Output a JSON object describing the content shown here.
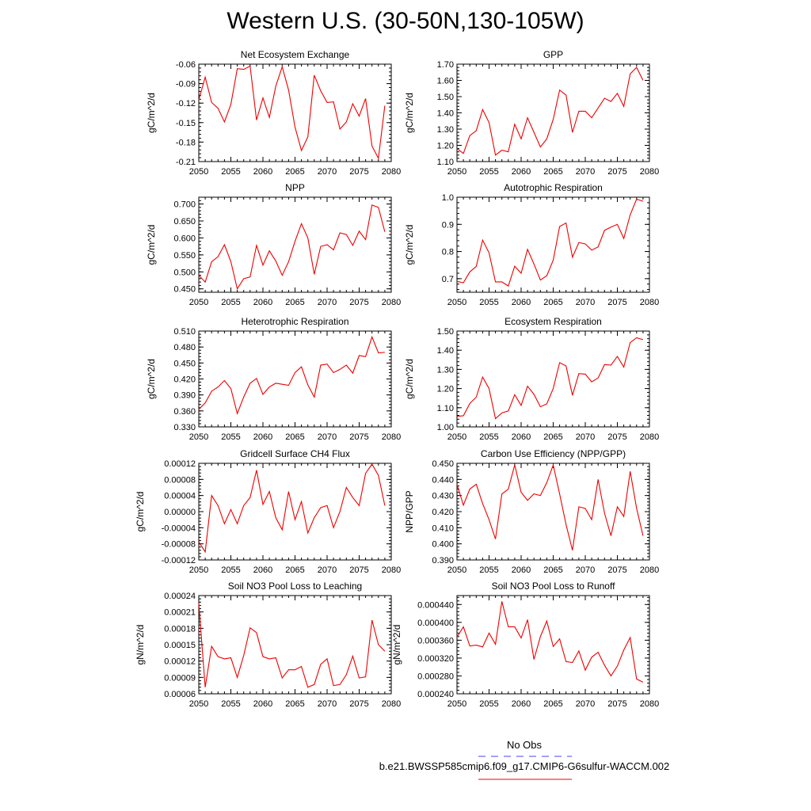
{
  "figure": {
    "title": "Western U.S. (30-50N,130-105W)"
  },
  "legend": {
    "items": [
      {
        "label": "No Obs",
        "color": "#4444ee",
        "style": "dashed"
      },
      {
        "label": "b.e21.BWSSP585cmip6.f09_g17.CMIP6-G6sulfur-WACCM.002",
        "color": "#ee0000",
        "style": "solid"
      }
    ]
  },
  "chart_data": [
    {
      "type": "line",
      "title": "Net Ecosystem Exchange",
      "ylabel": "gC/m^2/d",
      "xlim": [
        2050,
        2080
      ],
      "ylim": [
        -0.21,
        -0.06
      ],
      "xticks": [
        2050,
        2055,
        2060,
        2065,
        2070,
        2075,
        2080
      ],
      "xtick_labels": [
        "2050",
        "2055",
        "2060",
        "2065",
        "2070",
        "2075",
        "2080"
      ],
      "yticks": [
        -0.21,
        -0.18,
        -0.15,
        -0.12,
        -0.09,
        -0.06
      ],
      "ytick_labels": [
        "-0.21",
        "-0.18",
        "-0.15",
        "-0.12",
        "-0.09",
        "-0.06"
      ],
      "x": [
        2050,
        2051,
        2052,
        2053,
        2054,
        2055,
        2056,
        2057,
        2058,
        2059,
        2060,
        2061,
        2062,
        2063,
        2064,
        2065,
        2066,
        2067,
        2068,
        2069,
        2070,
        2071,
        2072,
        2073,
        2074,
        2075,
        2076,
        2077,
        2078,
        2079
      ],
      "series": [
        {
          "color": "#ee0000",
          "values": [
            -0.115,
            -0.08,
            -0.119,
            -0.128,
            -0.149,
            -0.122,
            -0.067,
            -0.068,
            -0.063,
            -0.146,
            -0.112,
            -0.142,
            -0.094,
            -0.064,
            -0.1,
            -0.157,
            -0.193,
            -0.172,
            -0.077,
            -0.101,
            -0.119,
            -0.118,
            -0.16,
            -0.149,
            -0.121,
            -0.14,
            -0.113,
            -0.186,
            -0.205,
            -0.124
          ]
        }
      ]
    },
    {
      "type": "line",
      "title": "GPP",
      "ylabel": "gC/m^2/d",
      "xlim": [
        2050,
        2080
      ],
      "ylim": [
        1.1,
        1.7
      ],
      "xticks": [
        2050,
        2055,
        2060,
        2065,
        2070,
        2075,
        2080
      ],
      "xtick_labels": [
        "2050",
        "2055",
        "2060",
        "2065",
        "2070",
        "2075",
        "2080"
      ],
      "yticks": [
        1.1,
        1.2,
        1.3,
        1.4,
        1.5,
        1.6,
        1.7
      ],
      "ytick_labels": [
        "1.10",
        "1.20",
        "1.30",
        "1.40",
        "1.50",
        "1.60",
        "1.70"
      ],
      "x": [
        2050,
        2051,
        2052,
        2053,
        2054,
        2055,
        2056,
        2057,
        2058,
        2059,
        2060,
        2061,
        2062,
        2063,
        2064,
        2065,
        2066,
        2067,
        2068,
        2069,
        2070,
        2071,
        2072,
        2073,
        2074,
        2075,
        2076,
        2077,
        2078,
        2079
      ],
      "series": [
        {
          "color": "#ee0000",
          "values": [
            1.18,
            1.15,
            1.26,
            1.29,
            1.42,
            1.34,
            1.14,
            1.17,
            1.16,
            1.33,
            1.24,
            1.37,
            1.28,
            1.19,
            1.24,
            1.36,
            1.54,
            1.51,
            1.28,
            1.41,
            1.41,
            1.37,
            1.43,
            1.49,
            1.47,
            1.52,
            1.44,
            1.64,
            1.68,
            1.6
          ]
        }
      ]
    },
    {
      "type": "line",
      "title": "NPP",
      "ylabel": "gC/m^2/d",
      "xlim": [
        2050,
        2080
      ],
      "ylim": [
        0.44,
        0.72
      ],
      "xticks": [
        2050,
        2055,
        2060,
        2065,
        2070,
        2075,
        2080
      ],
      "xtick_labels": [
        "2050",
        "2055",
        "2060",
        "2065",
        "2070",
        "2075",
        "2080"
      ],
      "yticks": [
        0.45,
        0.5,
        0.55,
        0.6,
        0.65,
        0.7
      ],
      "ytick_labels": [
        "0.450",
        "0.500",
        "0.550",
        "0.600",
        "0.650",
        "0.700"
      ],
      "x": [
        2050,
        2051,
        2052,
        2053,
        2054,
        2055,
        2056,
        2057,
        2058,
        2059,
        2060,
        2061,
        2062,
        2063,
        2064,
        2065,
        2066,
        2067,
        2068,
        2069,
        2070,
        2071,
        2072,
        2073,
        2074,
        2075,
        2076,
        2077,
        2078,
        2079
      ],
      "series": [
        {
          "color": "#ee0000",
          "values": [
            0.49,
            0.47,
            0.53,
            0.545,
            0.58,
            0.53,
            0.45,
            0.48,
            0.485,
            0.578,
            0.52,
            0.562,
            0.532,
            0.49,
            0.53,
            0.59,
            0.642,
            0.6,
            0.493,
            0.575,
            0.58,
            0.565,
            0.615,
            0.61,
            0.578,
            0.62,
            0.595,
            0.697,
            0.69,
            0.618
          ]
        }
      ]
    },
    {
      "type": "line",
      "title": "Autotrophic Respiration",
      "ylabel": "gC/m^2/d",
      "xlim": [
        2050,
        2080
      ],
      "ylim": [
        0.65,
        1.0
      ],
      "xticks": [
        2050,
        2055,
        2060,
        2065,
        2070,
        2075,
        2080
      ],
      "xtick_labels": [
        "2050",
        "2055",
        "2060",
        "2065",
        "2070",
        "2075",
        "2080"
      ],
      "yticks": [
        0.7,
        0.8,
        0.9,
        1.0
      ],
      "ytick_labels": [
        "0.7",
        "0.8",
        "0.9",
        "1.0"
      ],
      "x": [
        2050,
        2051,
        2052,
        2053,
        2054,
        2055,
        2056,
        2057,
        2058,
        2059,
        2060,
        2061,
        2062,
        2063,
        2064,
        2065,
        2066,
        2067,
        2068,
        2069,
        2070,
        2071,
        2072,
        2073,
        2074,
        2075,
        2076,
        2077,
        2078,
        2079
      ],
      "series": [
        {
          "color": "#ee0000",
          "values": [
            0.69,
            0.685,
            0.725,
            0.745,
            0.842,
            0.795,
            0.688,
            0.688,
            0.673,
            0.746,
            0.72,
            0.808,
            0.754,
            0.695,
            0.711,
            0.768,
            0.892,
            0.905,
            0.779,
            0.833,
            0.828,
            0.805,
            0.817,
            0.878,
            0.89,
            0.9,
            0.848,
            0.935,
            0.993,
            0.985
          ]
        }
      ]
    },
    {
      "type": "line",
      "title": "Heterotrophic Respiration",
      "ylabel": "gC/m^2/d",
      "xlim": [
        2050,
        2080
      ],
      "ylim": [
        0.33,
        0.51
      ],
      "xticks": [
        2050,
        2055,
        2060,
        2065,
        2070,
        2075,
        2080
      ],
      "xtick_labels": [
        "2050",
        "2055",
        "2060",
        "2065",
        "2070",
        "2075",
        "2080"
      ],
      "yticks": [
        0.33,
        0.36,
        0.39,
        0.42,
        0.45,
        0.48,
        0.51
      ],
      "ytick_labels": [
        "0.330",
        "0.360",
        "0.390",
        "0.420",
        "0.450",
        "0.480",
        "0.510"
      ],
      "x": [
        2050,
        2051,
        2052,
        2053,
        2054,
        2055,
        2056,
        2057,
        2058,
        2059,
        2060,
        2061,
        2062,
        2063,
        2064,
        2065,
        2066,
        2067,
        2068,
        2069,
        2070,
        2071,
        2072,
        2073,
        2074,
        2075,
        2076,
        2077,
        2078,
        2079
      ],
      "series": [
        {
          "color": "#ee0000",
          "values": [
            0.363,
            0.375,
            0.397,
            0.405,
            0.417,
            0.402,
            0.355,
            0.386,
            0.412,
            0.421,
            0.391,
            0.405,
            0.412,
            0.41,
            0.408,
            0.432,
            0.443,
            0.409,
            0.386,
            0.446,
            0.448,
            0.432,
            0.438,
            0.446,
            0.431,
            0.464,
            0.462,
            0.499,
            0.469,
            0.47
          ]
        }
      ]
    },
    {
      "type": "line",
      "title": "Ecosystem Respiration",
      "ylabel": "gC/m^2/d",
      "xlim": [
        2050,
        2080
      ],
      "ylim": [
        1.0,
        1.5
      ],
      "xticks": [
        2050,
        2055,
        2060,
        2065,
        2070,
        2075,
        2080
      ],
      "xtick_labels": [
        "2050",
        "2055",
        "2060",
        "2065",
        "2070",
        "2075",
        "2080"
      ],
      "yticks": [
        1.0,
        1.1,
        1.2,
        1.3,
        1.4,
        1.5
      ],
      "ytick_labels": [
        "1.00",
        "1.10",
        "1.20",
        "1.30",
        "1.40",
        "1.50"
      ],
      "x": [
        2050,
        2051,
        2052,
        2053,
        2054,
        2055,
        2056,
        2057,
        2058,
        2059,
        2060,
        2061,
        2062,
        2063,
        2064,
        2065,
        2066,
        2067,
        2068,
        2069,
        2070,
        2071,
        2072,
        2073,
        2074,
        2075,
        2076,
        2077,
        2078,
        2079
      ],
      "series": [
        {
          "color": "#ee0000",
          "values": [
            1.055,
            1.058,
            1.122,
            1.155,
            1.26,
            1.2,
            1.043,
            1.073,
            1.083,
            1.168,
            1.112,
            1.212,
            1.17,
            1.105,
            1.12,
            1.2,
            1.335,
            1.318,
            1.165,
            1.278,
            1.275,
            1.235,
            1.255,
            1.325,
            1.322,
            1.368,
            1.312,
            1.44,
            1.465,
            1.455
          ]
        }
      ]
    },
    {
      "type": "line",
      "title": "Gridcell Surface CH4 Flux",
      "ylabel": "gC/m^2/d",
      "xlim": [
        2050,
        2080
      ],
      "ylim": [
        -0.00012,
        0.00012
      ],
      "xticks": [
        2050,
        2055,
        2060,
        2065,
        2070,
        2075,
        2080
      ],
      "xtick_labels": [
        "2050",
        "2055",
        "2060",
        "2065",
        "2070",
        "2075",
        "2080"
      ],
      "yticks": [
        -0.00012,
        -8e-05,
        -4e-05,
        0.0,
        4e-05,
        8e-05,
        0.00012
      ],
      "ytick_labels": [
        "-0.00012",
        "-0.00008",
        "-0.00004",
        "0.00000",
        "0.00004",
        "0.00008",
        "0.00012"
      ],
      "x": [
        2050,
        2051,
        2052,
        2053,
        2054,
        2055,
        2056,
        2057,
        2058,
        2059,
        2060,
        2061,
        2062,
        2063,
        2064,
        2065,
        2066,
        2067,
        2068,
        2069,
        2070,
        2071,
        2072,
        2073,
        2074,
        2075,
        2076,
        2077,
        2078,
        2079
      ],
      "series": [
        {
          "color": "#ee0000",
          "values": [
            -7.5e-05,
            -0.0001,
            4e-05,
            1.5e-05,
            -3e-05,
            5e-06,
            -3e-05,
            1.5e-05,
            3.5e-05,
            0.000103,
            1.8e-05,
            5e-05,
            -1.5e-05,
            -4.5e-05,
            5e-05,
            -2e-05,
            2.5e-05,
            -5.3e-05,
            -1.5e-05,
            1e-05,
            1.5e-05,
            -4e-05,
            0.0,
            6e-05,
            3.5e-05,
            1.5e-05,
            9.5e-05,
            0.000118,
            9e-05,
            1.5e-05
          ]
        }
      ]
    },
    {
      "type": "line",
      "title": "Carbon Use Efficiency (NPP/GPP)",
      "ylabel": "NPP/GPP",
      "xlim": [
        2050,
        2080
      ],
      "ylim": [
        0.39,
        0.45
      ],
      "xticks": [
        2050,
        2055,
        2060,
        2065,
        2070,
        2075,
        2080
      ],
      "xtick_labels": [
        "2050",
        "2055",
        "2060",
        "2065",
        "2070",
        "2075",
        "2080"
      ],
      "yticks": [
        0.39,
        0.4,
        0.41,
        0.42,
        0.43,
        0.44,
        0.45
      ],
      "ytick_labels": [
        "0.390",
        "0.400",
        "0.410",
        "0.420",
        "0.430",
        "0.440",
        "0.450"
      ],
      "x": [
        2050,
        2051,
        2052,
        2053,
        2054,
        2055,
        2056,
        2057,
        2058,
        2059,
        2060,
        2061,
        2062,
        2063,
        2064,
        2065,
        2066,
        2067,
        2068,
        2069,
        2070,
        2071,
        2072,
        2073,
        2074,
        2075,
        2076,
        2077,
        2078,
        2079
      ],
      "series": [
        {
          "color": "#ee0000",
          "values": [
            0.437,
            0.424,
            0.434,
            0.437,
            0.425,
            0.415,
            0.403,
            0.431,
            0.434,
            0.449,
            0.432,
            0.427,
            0.431,
            0.43,
            0.438,
            0.449,
            0.431,
            0.412,
            0.396,
            0.423,
            0.422,
            0.415,
            0.44,
            0.419,
            0.405,
            0.423,
            0.417,
            0.445,
            0.422,
            0.405
          ]
        }
      ]
    },
    {
      "type": "line",
      "title": "Soil NO3 Pool Loss to Leaching",
      "ylabel": "gN/m^2/d",
      "xlim": [
        2050,
        2080
      ],
      "ylim": [
        6e-05,
        0.00024
      ],
      "xticks": [
        2050,
        2055,
        2060,
        2065,
        2070,
        2075,
        2080
      ],
      "xtick_labels": [
        "2050",
        "2055",
        "2060",
        "2065",
        "2070",
        "2075",
        "2080"
      ],
      "yticks": [
        6e-05,
        9e-05,
        0.00012,
        0.00015,
        0.00018,
        0.00021,
        0.00024
      ],
      "ytick_labels": [
        "0.00006",
        "0.00009",
        "0.00012",
        "0.00015",
        "0.00018",
        "0.00021",
        "0.00024"
      ],
      "x": [
        2050,
        2051,
        2052,
        2053,
        2054,
        2055,
        2056,
        2057,
        2058,
        2059,
        2060,
        2061,
        2062,
        2063,
        2064,
        2065,
        2066,
        2067,
        2068,
        2069,
        2070,
        2071,
        2072,
        2073,
        2074,
        2075,
        2076,
        2077,
        2078,
        2079
      ],
      "series": [
        {
          "color": "#ee0000",
          "values": [
            0.000225,
            7.2e-05,
            0.000147,
            0.000128,
            0.000124,
            0.000126,
            9e-05,
            0.00013,
            0.000181,
            0.000172,
            0.000128,
            0.000124,
            0.000126,
            8.9e-05,
            0.000104,
            0.000104,
            0.00011,
            7.2e-05,
            7.7e-05,
            0.000114,
            0.000124,
            7.5e-05,
            7.7e-05,
            9.5e-05,
            0.000129,
            8.9e-05,
            9.1e-05,
            0.000195,
            0.00015,
            0.000138
          ]
        }
      ]
    },
    {
      "type": "line",
      "title": "Soil NO3 Pool Loss to Runoff",
      "ylabel": "gN/m^2/d",
      "xlim": [
        2050,
        2080
      ],
      "ylim": [
        0.00024,
        0.00046
      ],
      "xticks": [
        2050,
        2055,
        2060,
        2065,
        2070,
        2075,
        2080
      ],
      "xtick_labels": [
        "2050",
        "2055",
        "2060",
        "2065",
        "2070",
        "2075",
        "2080"
      ],
      "yticks": [
        0.00024,
        0.00028,
        0.00032,
        0.00036,
        0.0004,
        0.00044
      ],
      "ytick_labels": [
        "0.000240",
        "0.000280",
        "0.000320",
        "0.000360",
        "0.000400",
        "0.000440"
      ],
      "x": [
        2050,
        2051,
        2052,
        2053,
        2054,
        2055,
        2056,
        2057,
        2058,
        2059,
        2060,
        2061,
        2062,
        2063,
        2064,
        2065,
        2066,
        2067,
        2068,
        2069,
        2070,
        2071,
        2072,
        2073,
        2074,
        2075,
        2076,
        2077,
        2078,
        2079
      ],
      "series": [
        {
          "color": "#ee0000",
          "values": [
            0.000367,
            0.00039,
            0.000347,
            0.000349,
            0.000345,
            0.000376,
            0.000351,
            0.000447,
            0.00039,
            0.00039,
            0.000365,
            0.000406,
            0.000317,
            0.000368,
            0.000403,
            0.000346,
            0.000363,
            0.000312,
            0.00031,
            0.000336,
            0.000293,
            0.000322,
            0.000333,
            0.000304,
            0.00028,
            0.000302,
            0.000338,
            0.000366,
            0.000273,
            0.000266
          ]
        }
      ]
    }
  ]
}
